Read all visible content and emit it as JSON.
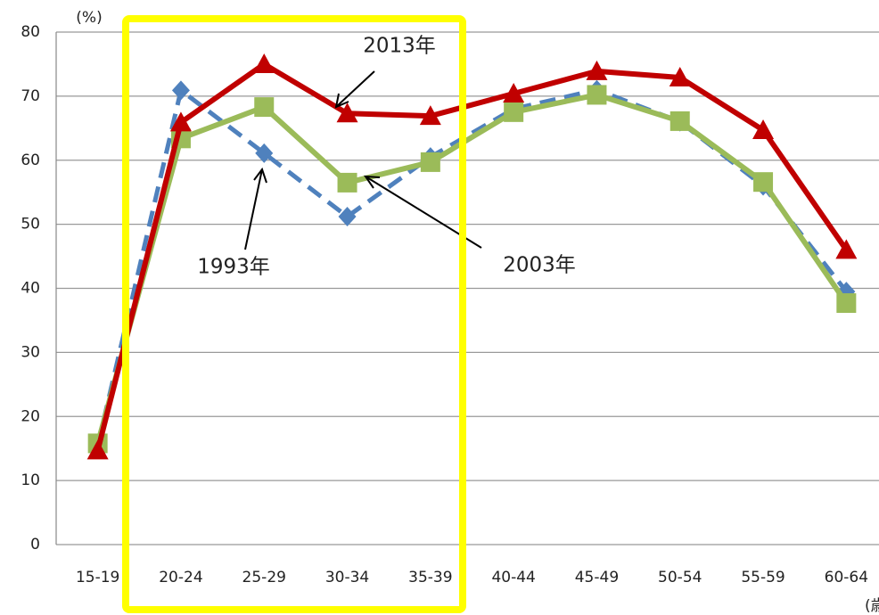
{
  "chart_data": {
    "type": "line",
    "y_unit": "(%)",
    "x_unit": "(歳)",
    "categories": [
      "15-19",
      "20-24",
      "25-29",
      "30-34",
      "35-39",
      "40-44",
      "45-49",
      "50-54",
      "55-59",
      "60-64"
    ],
    "series": [
      {
        "name": "1993年",
        "color": "#4f81bd",
        "dashed": true,
        "marker": "diamond",
        "values": [
          15.5,
          70.9,
          61.1,
          51.2,
          60.5,
          68,
          71,
          66,
          56,
          39.5
        ]
      },
      {
        "name": "2003年",
        "color": "#9bbb59",
        "dashed": false,
        "marker": "square",
        "values": [
          15.8,
          63.4,
          68.3,
          56.5,
          59.7,
          67.5,
          70.2,
          66.1,
          56.6,
          37.7
        ]
      },
      {
        "name": "2013年",
        "color": "#c00000",
        "dashed": false,
        "marker": "triangle",
        "values": [
          14.7,
          65.9,
          75,
          67.3,
          66.9,
          70.4,
          73.9,
          72.9,
          64.7,
          46
        ]
      }
    ],
    "ylim": [
      0,
      80
    ],
    "yticks": [
      0,
      10,
      20,
      30,
      40,
      50,
      60,
      70,
      80
    ],
    "grid": true
  }
}
